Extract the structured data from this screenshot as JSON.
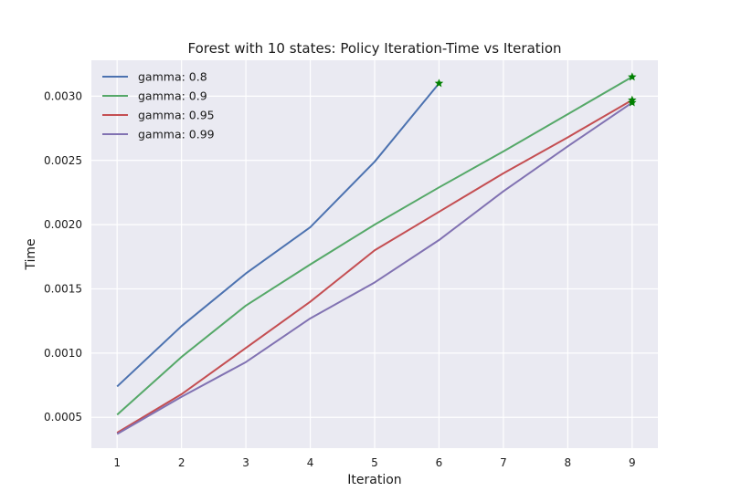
{
  "chart_data": {
    "type": "line",
    "title": "Forest with 10 states: Policy Iteration-Time vs Iteration",
    "xlabel": "Iteration",
    "ylabel": "Time",
    "xlim": [
      0.6,
      9.4
    ],
    "ylim": [
      0.00026,
      0.00328
    ],
    "xticks": [
      1,
      2,
      3,
      4,
      5,
      6,
      7,
      8,
      9
    ],
    "xtick_labels": [
      "1",
      "2",
      "3",
      "4",
      "5",
      "6",
      "7",
      "8",
      "9"
    ],
    "yticks": [
      0.0005,
      0.001,
      0.0015,
      0.002,
      0.0025,
      0.003
    ],
    "ytick_labels": [
      "0.0005",
      "0.0010",
      "0.0015",
      "0.0020",
      "0.0025",
      "0.0030"
    ],
    "grid": true,
    "legend_position": "top-left",
    "background_color": "#eaeaf2",
    "marker_color": "#008000",
    "series": [
      {
        "name": "gamma: 0.8",
        "color": "#4c72b0",
        "x": [
          1,
          2,
          3,
          4,
          5,
          6
        ],
        "values": [
          0.00074,
          0.00121,
          0.00162,
          0.00198,
          0.00249,
          0.0031
        ]
      },
      {
        "name": "gamma: 0.9",
        "color": "#55a868",
        "x": [
          1,
          2,
          3,
          4,
          5,
          6,
          7,
          8,
          9
        ],
        "values": [
          0.00052,
          0.00097,
          0.00137,
          0.00169,
          0.002,
          0.00229,
          0.00257,
          0.00286,
          0.00315
        ]
      },
      {
        "name": "gamma: 0.95",
        "color": "#c44e52",
        "x": [
          1,
          2,
          3,
          4,
          5,
          6,
          7,
          8,
          9
        ],
        "values": [
          0.00038,
          0.00068,
          0.00104,
          0.0014,
          0.0018,
          0.0021,
          0.0024,
          0.00268,
          0.00297
        ]
      },
      {
        "name": "gamma: 0.99",
        "color": "#8172b2",
        "x": [
          1,
          2,
          3,
          4,
          5,
          6,
          7,
          8,
          9
        ],
        "values": [
          0.00037,
          0.00066,
          0.00093,
          0.00127,
          0.00155,
          0.00188,
          0.00226,
          0.00261,
          0.00295
        ]
      }
    ]
  }
}
